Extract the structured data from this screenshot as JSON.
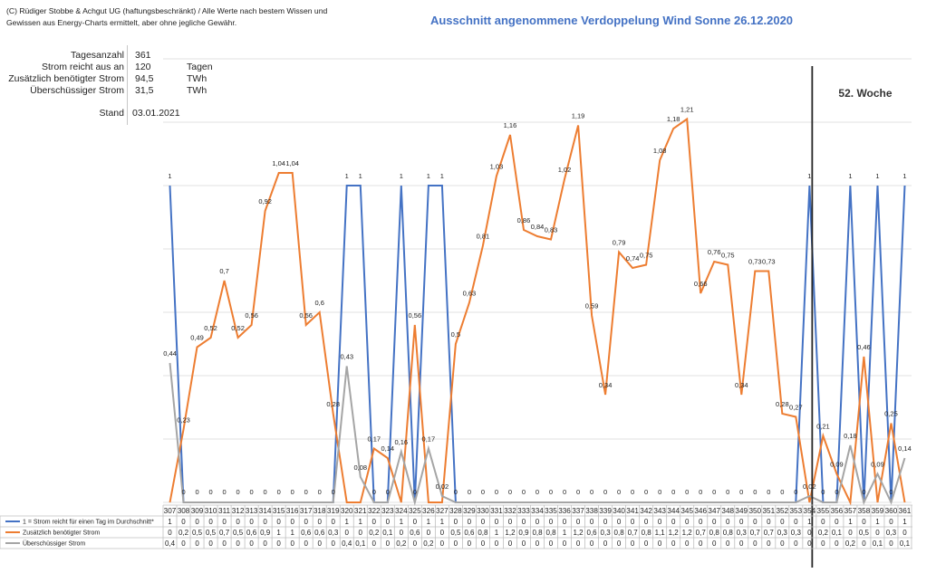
{
  "copyright": {
    "line1": "(C) Rüdiger Stobbe & Achgut UG (haftungsbeschränkt) / Alle Werte nach bestem Wissen und",
    "line2": "Gewissen aus Energy-Charts ermittelt, aber ohne jegliche Gewähr."
  },
  "title": "Ausschnitt angenommene Verdoppelung Wind Sonne 26.12.2020",
  "stats": [
    {
      "label": "Tagesanzahl",
      "value": "361",
      "unit": ""
    },
    {
      "label": "Strom reicht aus an",
      "value": "120",
      "unit": "Tagen"
    },
    {
      "label": "Zusätzlich benötigter Strom",
      "value": "94,5",
      "unit": "TWh"
    },
    {
      "label": "Überschüssiger Strom",
      "value": "31,5",
      "unit": "TWh"
    },
    {
      "label": "Stand",
      "value": "03.01.2021",
      "unit": ""
    }
  ],
  "week_annotation": "52. Woche",
  "colors": {
    "blue": "#4472C4",
    "orange": "#ED7D31",
    "gray": "#A5A5A5",
    "marker_line": "#262626"
  },
  "chart_data": {
    "type": "line",
    "categories": [
      "307",
      "308",
      "309",
      "310",
      "311",
      "312",
      "313",
      "314",
      "315",
      "316",
      "317",
      "318",
      "319",
      "320",
      "321",
      "322",
      "323",
      "324",
      "325",
      "326",
      "327",
      "328",
      "329",
      "330",
      "331",
      "332",
      "333",
      "334",
      "335",
      "336",
      "337",
      "338",
      "339",
      "340",
      "341",
      "342",
      "343",
      "344",
      "345",
      "346",
      "347",
      "348",
      "349",
      "350",
      "351",
      "352",
      "353",
      "354",
      "355",
      "356",
      "357",
      "358",
      "359",
      "360",
      "361"
    ],
    "marker_category": "354",
    "series": [
      {
        "name": "1 = Strom reicht für einen Tag im Durchschnitt*",
        "color": "#4472C4",
        "values": [
          1,
          0,
          0,
          0,
          0,
          0,
          0,
          0,
          0,
          0,
          0,
          0,
          0,
          1,
          1,
          0,
          0,
          1,
          0,
          1,
          1,
          0,
          0,
          0,
          0,
          0,
          0,
          0,
          0,
          0,
          0,
          0,
          0,
          0,
          0,
          0,
          0,
          0,
          0,
          0,
          0,
          0,
          0,
          0,
          0,
          0,
          0,
          1,
          0,
          0,
          1,
          0,
          1,
          0,
          1
        ],
        "labels": [
          "1",
          "0",
          "0",
          "0",
          "0",
          "0",
          "0",
          "0",
          "0",
          "0",
          "0",
          "0",
          "0",
          "1",
          "1",
          "0",
          "0",
          "1",
          "0",
          "1",
          "1",
          "0",
          "0",
          "0",
          "0",
          "0",
          "0",
          "0",
          "0",
          "0",
          "0",
          "0",
          "0",
          "0",
          "0",
          "0",
          "0",
          "0",
          "0",
          "0",
          "0",
          "0",
          "0",
          "0",
          "0",
          "0",
          "0",
          "1",
          "0",
          "0",
          "1",
          "0",
          "1",
          "0",
          "1"
        ],
        "table": [
          "1",
          "0",
          "0",
          "0",
          "0",
          "0",
          "0",
          "0",
          "0",
          "0",
          "0",
          "0",
          "0",
          "1",
          "1",
          "0",
          "0",
          "1",
          "0",
          "1",
          "1",
          "0",
          "0",
          "0",
          "0",
          "0",
          "0",
          "0",
          "0",
          "0",
          "0",
          "0",
          "0",
          "0",
          "0",
          "0",
          "0",
          "0",
          "0",
          "0",
          "0",
          "0",
          "0",
          "0",
          "0",
          "0",
          "0",
          "1",
          "0",
          "0",
          "1",
          "0",
          "1",
          "0",
          "1"
        ]
      },
      {
        "name": "Zusätzlich benötigter Strom",
        "color": "#ED7D31",
        "values": [
          0,
          0.23,
          0.49,
          0.52,
          0.7,
          0.52,
          0.56,
          0.92,
          1.04,
          1.04,
          0.56,
          0.6,
          0.28,
          0,
          0,
          0.17,
          0.14,
          0,
          0.56,
          0,
          0,
          0.5,
          0.63,
          0.81,
          1.03,
          1.16,
          0.86,
          0.84,
          0.83,
          1.02,
          1.19,
          0.59,
          0.34,
          0.79,
          0.74,
          0.75,
          1.08,
          1.18,
          1.21,
          0.66,
          0.76,
          0.75,
          0.34,
          0.73,
          0.73,
          0.28,
          0.27,
          0,
          0.21,
          0.09,
          0,
          0.46,
          0,
          0.25,
          0
        ],
        "labels": [
          "0",
          "0,23",
          "0,49",
          "0,52",
          "0,7",
          "0,52",
          "0,56",
          "0,92",
          "1,04",
          "1,04",
          "0,56",
          "0,6",
          "0,28",
          "0",
          "0",
          "0,17",
          "0,14",
          "0",
          "0,56",
          "0",
          "0",
          "0,5",
          "0,63",
          "0,81",
          "1,03",
          "1,16",
          "0,86",
          "0,84",
          "0,83",
          "1,02",
          "1,19",
          "0,59",
          "0,34",
          "0,79",
          "0,74",
          "0,75",
          "1,08",
          "1,18",
          "1,21",
          "0,66",
          "0,76",
          "0,75",
          "0,34",
          "0,73",
          "0,73",
          "0,28",
          "0,27",
          "0",
          "0,21",
          "0,09",
          "0",
          "0,46",
          "0",
          "0,25",
          "0"
        ],
        "table": [
          "0",
          "0,2",
          "0,5",
          "0,5",
          "0,7",
          "0,5",
          "0,6",
          "0,9",
          "1",
          "1",
          "0,6",
          "0,6",
          "0,3",
          "0",
          "0",
          "0,2",
          "0,1",
          "0",
          "0,6",
          "0",
          "0",
          "0,5",
          "0,6",
          "0,8",
          "1",
          "1,2",
          "0,9",
          "0,8",
          "0,8",
          "1",
          "1,2",
          "0,6",
          "0,3",
          "0,8",
          "0,7",
          "0,8",
          "1,1",
          "1,2",
          "1,2",
          "0,7",
          "0,8",
          "0,8",
          "0,3",
          "0,7",
          "0,7",
          "0,3",
          "0,3",
          "0",
          "0,2",
          "0,1",
          "0",
          "0,5",
          "0",
          "0,3",
          "0"
        ]
      },
      {
        "name": "Überschüssiger Strom",
        "color": "#A5A5A5",
        "values": [
          0.44,
          0,
          0,
          0,
          0,
          0,
          0,
          0,
          0,
          0,
          0,
          0,
          0,
          0.43,
          0.08,
          0,
          0,
          0.16,
          0,
          0.17,
          0.02,
          0,
          0,
          0,
          0,
          0,
          0,
          0,
          0,
          0,
          0,
          0,
          0,
          0,
          0,
          0,
          0,
          0,
          0,
          0,
          0,
          0,
          0,
          0,
          0,
          0,
          0,
          0.02,
          0,
          0,
          0.18,
          0,
          0.09,
          0,
          0.14
        ],
        "labels": [
          "0,44",
          "0",
          "0",
          "0",
          "0",
          "0",
          "0",
          "0",
          "0",
          "0",
          "0",
          "0",
          "0",
          "0,43",
          "0,08",
          "0",
          "0",
          "0,16",
          "0",
          "0,17",
          "0,02",
          "0",
          "0",
          "0",
          "0",
          "0",
          "0",
          "0",
          "0",
          "0",
          "0",
          "0",
          "0",
          "0",
          "0",
          "0",
          "0",
          "0",
          "0",
          "0",
          "0",
          "0",
          "0",
          "0",
          "0",
          "0",
          "0",
          "0,02",
          "0",
          "0",
          "0,18",
          "0",
          "0,09",
          "0",
          "0,14"
        ],
        "table": [
          "0,4",
          "0",
          "0",
          "0",
          "0",
          "0",
          "0",
          "0",
          "0",
          "0",
          "0",
          "0",
          "0",
          "0,4",
          "0,1",
          "0",
          "0",
          "0,2",
          "0",
          "0,2",
          "0",
          "0",
          "0",
          "0",
          "0",
          "0",
          "0",
          "0",
          "0",
          "0",
          "0",
          "0",
          "0",
          "0",
          "0",
          "0",
          "0",
          "0",
          "0",
          "0",
          "0",
          "0",
          "0",
          "0",
          "0",
          "0",
          "0",
          "0",
          "0",
          "0",
          "0,2",
          "0",
          "0,1",
          "0",
          "0,1"
        ]
      }
    ],
    "ylim": [
      0,
      1.4
    ],
    "grid": true,
    "legend": "table-left"
  }
}
